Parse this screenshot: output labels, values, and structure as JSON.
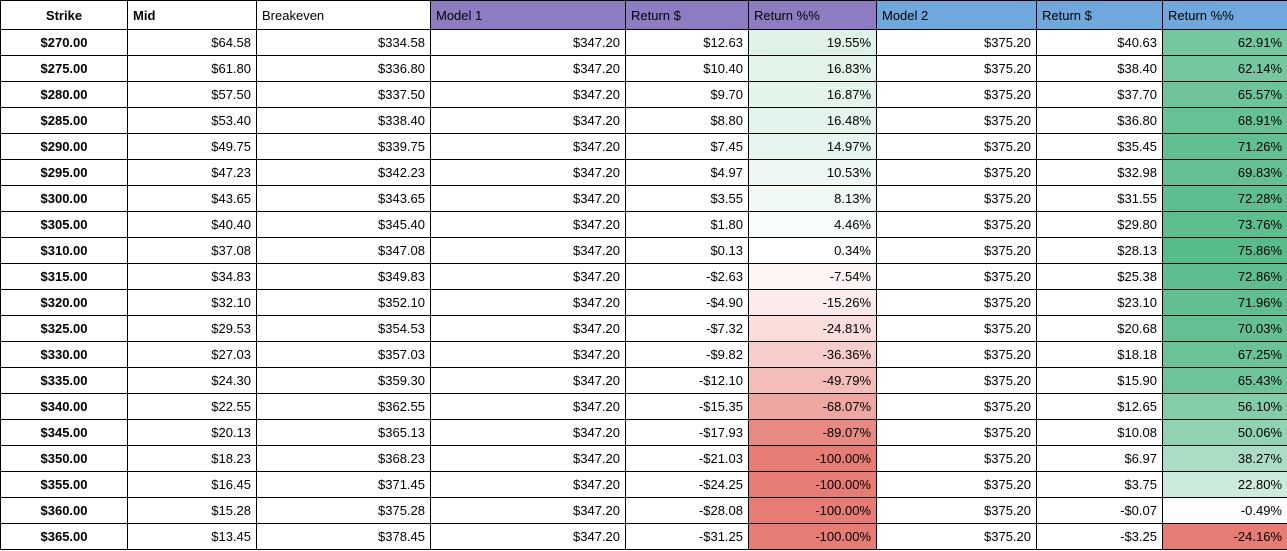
{
  "table": {
    "headers": [
      {
        "key": "strike",
        "label": "Strike",
        "bg": "#ffffff",
        "bold": true,
        "align": "center"
      },
      {
        "key": "mid",
        "label": "Mid",
        "bg": "#ffffff",
        "bold": true,
        "align": "left"
      },
      {
        "key": "breakeven",
        "label": "Breakeven",
        "bg": "#ffffff",
        "bold": false,
        "align": "left"
      },
      {
        "key": "model1",
        "label": "Model 1",
        "bg": "#8e7cc3",
        "bold": false,
        "align": "left"
      },
      {
        "key": "return1-dollar",
        "label": "Return $",
        "bg": "#8e7cc3",
        "bold": false,
        "align": "left"
      },
      {
        "key": "return1-pct",
        "label": "Return %%",
        "bg": "#8e7cc3",
        "bold": false,
        "align": "left"
      },
      {
        "key": "model2",
        "label": "Model 2",
        "bg": "#6fa8dc",
        "bold": false,
        "align": "left"
      },
      {
        "key": "return2-dollar",
        "label": "Return $",
        "bg": "#6fa8dc",
        "bold": false,
        "align": "left"
      },
      {
        "key": "return2-pct",
        "label": "Return %%",
        "bg": "#6fa8dc",
        "bold": false,
        "align": "left"
      }
    ],
    "rows": [
      {
        "strike": "$270.00",
        "mid": "$64.58",
        "breakeven": "$334.58",
        "model1": "$347.20",
        "return1_dollar": "$12.63",
        "return1_pct": "19.55%",
        "model2": "$375.20",
        "return2_dollar": "$40.63",
        "return2_pct": "62.91%"
      },
      {
        "strike": "$275.00",
        "mid": "$61.80",
        "breakeven": "$336.80",
        "model1": "$347.20",
        "return1_dollar": "$10.40",
        "return1_pct": "16.83%",
        "model2": "$375.20",
        "return2_dollar": "$38.40",
        "return2_pct": "62.14%"
      },
      {
        "strike": "$280.00",
        "mid": "$57.50",
        "breakeven": "$337.50",
        "model1": "$347.20",
        "return1_dollar": "$9.70",
        "return1_pct": "16.87%",
        "model2": "$375.20",
        "return2_dollar": "$37.70",
        "return2_pct": "65.57%"
      },
      {
        "strike": "$285.00",
        "mid": "$53.40",
        "breakeven": "$338.40",
        "model1": "$347.20",
        "return1_dollar": "$8.80",
        "return1_pct": "16.48%",
        "model2": "$375.20",
        "return2_dollar": "$36.80",
        "return2_pct": "68.91%"
      },
      {
        "strike": "$290.00",
        "mid": "$49.75",
        "breakeven": "$339.75",
        "model1": "$347.20",
        "return1_dollar": "$7.45",
        "return1_pct": "14.97%",
        "model2": "$375.20",
        "return2_dollar": "$35.45",
        "return2_pct": "71.26%"
      },
      {
        "strike": "$295.00",
        "mid": "$47.23",
        "breakeven": "$342.23",
        "model1": "$347.20",
        "return1_dollar": "$4.97",
        "return1_pct": "10.53%",
        "model2": "$375.20",
        "return2_dollar": "$32.98",
        "return2_pct": "69.83%"
      },
      {
        "strike": "$300.00",
        "mid": "$43.65",
        "breakeven": "$343.65",
        "model1": "$347.20",
        "return1_dollar": "$3.55",
        "return1_pct": "8.13%",
        "model2": "$375.20",
        "return2_dollar": "$31.55",
        "return2_pct": "72.28%"
      },
      {
        "strike": "$305.00",
        "mid": "$40.40",
        "breakeven": "$345.40",
        "model1": "$347.20",
        "return1_dollar": "$1.80",
        "return1_pct": "4.46%",
        "model2": "$375.20",
        "return2_dollar": "$29.80",
        "return2_pct": "73.76%"
      },
      {
        "strike": "$310.00",
        "mid": "$37.08",
        "breakeven": "$347.08",
        "model1": "$347.20",
        "return1_dollar": "$0.13",
        "return1_pct": "0.34%",
        "model2": "$375.20",
        "return2_dollar": "$28.13",
        "return2_pct": "75.86%"
      },
      {
        "strike": "$315.00",
        "mid": "$34.83",
        "breakeven": "$349.83",
        "model1": "$347.20",
        "return1_dollar": "-$2.63",
        "return1_pct": "-7.54%",
        "model2": "$375.20",
        "return2_dollar": "$25.38",
        "return2_pct": "72.86%"
      },
      {
        "strike": "$320.00",
        "mid": "$32.10",
        "breakeven": "$352.10",
        "model1": "$347.20",
        "return1_dollar": "-$4.90",
        "return1_pct": "-15.26%",
        "model2": "$375.20",
        "return2_dollar": "$23.10",
        "return2_pct": "71.96%"
      },
      {
        "strike": "$325.00",
        "mid": "$29.53",
        "breakeven": "$354.53",
        "model1": "$347.20",
        "return1_dollar": "-$7.32",
        "return1_pct": "-24.81%",
        "model2": "$375.20",
        "return2_dollar": "$20.68",
        "return2_pct": "70.03%"
      },
      {
        "strike": "$330.00",
        "mid": "$27.03",
        "breakeven": "$357.03",
        "model1": "$347.20",
        "return1_dollar": "-$9.82",
        "return1_pct": "-36.36%",
        "model2": "$375.20",
        "return2_dollar": "$18.18",
        "return2_pct": "67.25%"
      },
      {
        "strike": "$335.00",
        "mid": "$24.30",
        "breakeven": "$359.30",
        "model1": "$347.20",
        "return1_dollar": "-$12.10",
        "return1_pct": "-49.79%",
        "model2": "$375.20",
        "return2_dollar": "$15.90",
        "return2_pct": "65.43%"
      },
      {
        "strike": "$340.00",
        "mid": "$22.55",
        "breakeven": "$362.55",
        "model1": "$347.20",
        "return1_dollar": "-$15.35",
        "return1_pct": "-68.07%",
        "model2": "$375.20",
        "return2_dollar": "$12.65",
        "return2_pct": "56.10%"
      },
      {
        "strike": "$345.00",
        "mid": "$20.13",
        "breakeven": "$365.13",
        "model1": "$347.20",
        "return1_dollar": "-$17.93",
        "return1_pct": "-89.07%",
        "model2": "$375.20",
        "return2_dollar": "$10.08",
        "return2_pct": "50.06%"
      },
      {
        "strike": "$350.00",
        "mid": "$18.23",
        "breakeven": "$368.23",
        "model1": "$347.20",
        "return1_dollar": "-$21.03",
        "return1_pct": "-100.00%",
        "model2": "$375.20",
        "return2_dollar": "$6.97",
        "return2_pct": "38.27%"
      },
      {
        "strike": "$355.00",
        "mid": "$16.45",
        "breakeven": "$371.45",
        "model1": "$347.20",
        "return1_dollar": "-$24.25",
        "return1_pct": "-100.00%",
        "model2": "$375.20",
        "return2_dollar": "$3.75",
        "return2_pct": "22.80%"
      },
      {
        "strike": "$360.00",
        "mid": "$15.28",
        "breakeven": "$375.28",
        "model1": "$347.20",
        "return1_dollar": "-$28.08",
        "return1_pct": "-100.00%",
        "model2": "$375.20",
        "return2_dollar": "-$0.07",
        "return2_pct": "-0.49%"
      },
      {
        "strike": "$365.00",
        "mid": "$13.45",
        "breakeven": "$378.45",
        "model1": "$347.20",
        "return1_dollar": "-$31.25",
        "return1_pct": "-100.00%",
        "model2": "$375.20",
        "return2_dollar": "-$3.25",
        "return2_pct": "-24.16%"
      }
    ]
  },
  "conditional_format": {
    "positive_color": "#57bb8a",
    "negative_color": "#e67c73",
    "model1_pct_scale": {
      "max": 100,
      "min": -100
    },
    "model2_pct_scale": {
      "max": 75.86,
      "min": -24.16
    }
  },
  "colors": {
    "model1_header_bg": "#8e7cc3",
    "model2_header_bg": "#6fa8dc",
    "grid": "#000000",
    "text": "#000000"
  }
}
